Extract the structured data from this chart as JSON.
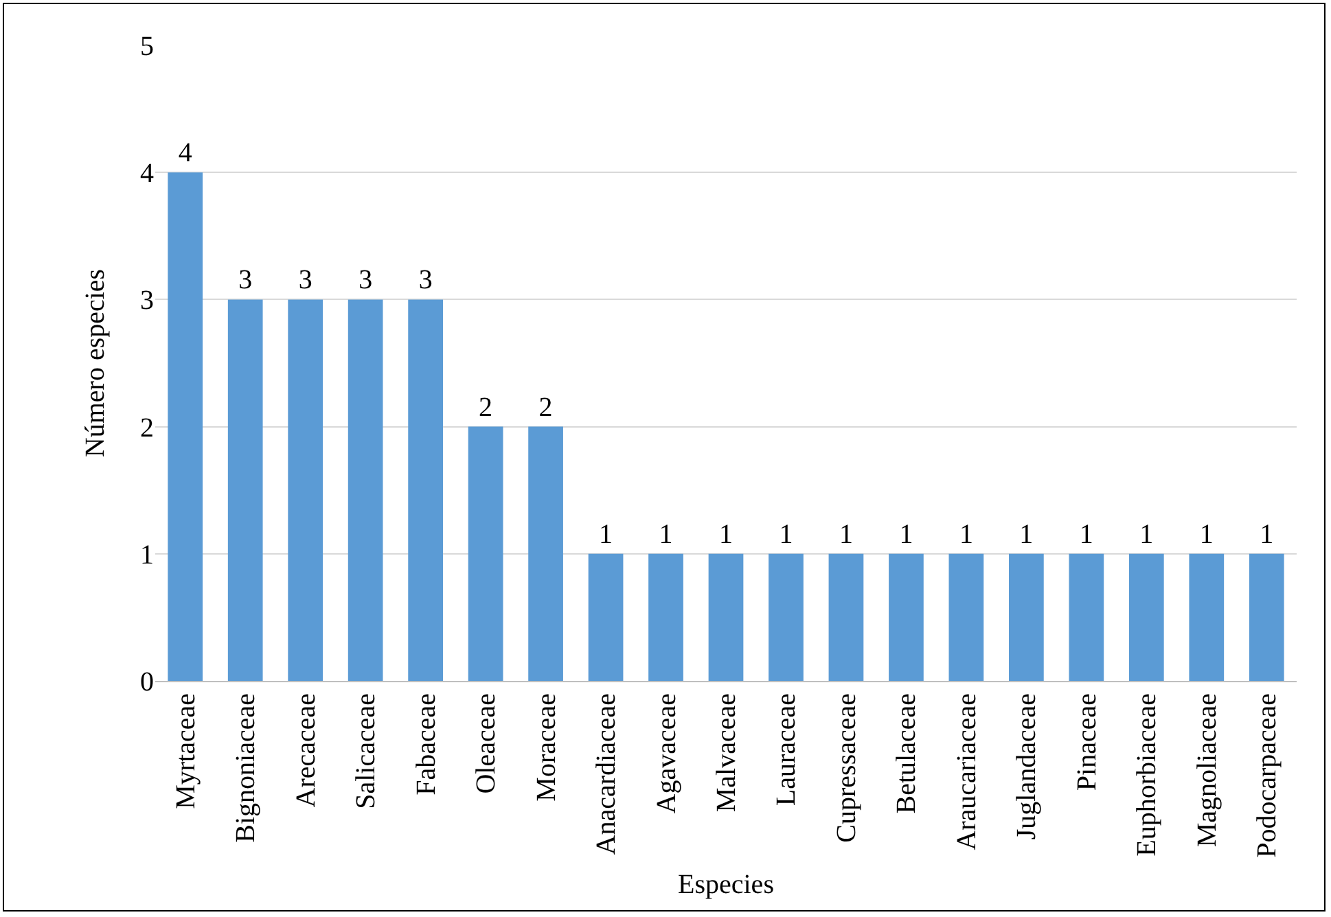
{
  "chart_data": {
    "type": "bar",
    "xlabel": "Especies",
    "ylabel": "Número especies",
    "categories": [
      "Myrtaceae",
      "Bignoniaceae",
      "Arecaceae",
      "Salicaceae",
      "Fabaceae",
      "Oleaceae",
      "Moraceae",
      "Anacardiaceae",
      "Agavaceae",
      "Malvaceae",
      "Lauraceae",
      "Cupressaceae",
      "Betulaceae",
      "Araucariaceae",
      "Juglandaceae",
      "Pinaceae",
      "Euphorbiaceae",
      "Magnoliaceae",
      "Podocarpaceae"
    ],
    "values": [
      4,
      3,
      3,
      3,
      3,
      2,
      2,
      1,
      1,
      1,
      1,
      1,
      1,
      1,
      1,
      1,
      1,
      1,
      1
    ],
    "color": "#5b9bd5",
    "ylim": [
      0,
      5
    ],
    "yticks": [
      0,
      1,
      2,
      3,
      4,
      5
    ],
    "grid": "y",
    "data_labels": true,
    "legend": false
  }
}
